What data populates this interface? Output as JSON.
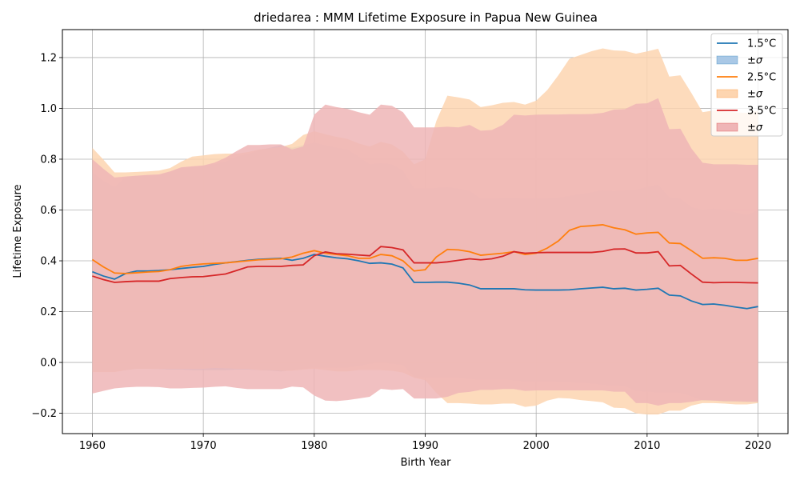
{
  "chart_data": {
    "type": "area",
    "title": "driedarea : MMM Lifetime Exposure in Papua New Guinea",
    "xlabel": "Birth Year",
    "ylabel": "Lifetime Exposure",
    "xlim": [
      1957.3,
      2022.7
    ],
    "ylim": [
      -0.28,
      1.31
    ],
    "xticks": [
      1960,
      1970,
      1980,
      1990,
      2000,
      2010,
      2020
    ],
    "yticks": [
      -0.2,
      0.0,
      0.2,
      0.4,
      0.6,
      0.8,
      1.0,
      1.2
    ],
    "ytick_labels": [
      "−0.2",
      "0.0",
      "0.2",
      "0.4",
      "0.6",
      "0.8",
      "1.0",
      "1.2"
    ],
    "grid": true,
    "legend_position": "top-right",
    "x": [
      1960,
      1961,
      1962,
      1963,
      1964,
      1965,
      1966,
      1967,
      1968,
      1969,
      1970,
      1971,
      1972,
      1973,
      1974,
      1975,
      1976,
      1977,
      1978,
      1979,
      1980,
      1981,
      1982,
      1983,
      1984,
      1985,
      1986,
      1987,
      1988,
      1989,
      1990,
      1991,
      1992,
      1993,
      1994,
      1995,
      1996,
      1997,
      1998,
      1999,
      2000,
      2001,
      2002,
      2003,
      2004,
      2005,
      2006,
      2007,
      2008,
      2009,
      2010,
      2011,
      2012,
      2013,
      2014,
      2015,
      2016,
      2017,
      2018,
      2019,
      2020
    ],
    "series": [
      {
        "name": "1.5°C",
        "band_label": "±σ",
        "color": "#1f77b4",
        "fill": "#a9c8e6",
        "mean": [
          0.357,
          0.34,
          0.328,
          0.35,
          0.36,
          0.36,
          0.362,
          0.365,
          0.37,
          0.374,
          0.378,
          0.386,
          0.392,
          0.397,
          0.402,
          0.406,
          0.408,
          0.41,
          0.402,
          0.41,
          0.425,
          0.418,
          0.412,
          0.408,
          0.4,
          0.39,
          0.392,
          0.387,
          0.372,
          0.315,
          0.315,
          0.316,
          0.316,
          0.312,
          0.305,
          0.29,
          0.29,
          0.29,
          0.29,
          0.286,
          0.285,
          0.285,
          0.285,
          0.286,
          0.29,
          0.293,
          0.296,
          0.29,
          0.292,
          0.285,
          0.288,
          0.292,
          0.265,
          0.262,
          0.242,
          0.228,
          0.23,
          0.225,
          0.218,
          0.212,
          0.22
        ],
        "upper": [
          0.748,
          0.715,
          0.69,
          0.73,
          0.735,
          0.735,
          0.738,
          0.75,
          0.765,
          0.77,
          0.775,
          0.78,
          0.79,
          0.81,
          0.82,
          0.835,
          0.845,
          0.855,
          0.845,
          0.855,
          0.865,
          0.855,
          0.845,
          0.838,
          0.81,
          0.78,
          0.785,
          0.78,
          0.755,
          0.685,
          0.685,
          0.687,
          0.69,
          0.684,
          0.676,
          0.645,
          0.645,
          0.647,
          0.648,
          0.645,
          0.646,
          0.646,
          0.649,
          0.655,
          0.662,
          0.67,
          0.678,
          0.674,
          0.678,
          0.68,
          0.69,
          0.7,
          0.65,
          0.645,
          0.612,
          0.6,
          0.606,
          0.6,
          0.59,
          0.58,
          0.6
        ],
        "lower": [
          -0.036,
          -0.037,
          -0.036,
          -0.03,
          -0.025,
          -0.025,
          -0.026,
          -0.028,
          -0.028,
          -0.03,
          -0.03,
          -0.03,
          -0.03,
          -0.028,
          -0.028,
          -0.03,
          -0.032,
          -0.035,
          -0.03,
          -0.025,
          -0.02,
          -0.02,
          -0.022,
          -0.02,
          -0.014,
          -0.005,
          0.0,
          -0.005,
          -0.01,
          -0.058,
          -0.058,
          -0.058,
          -0.058,
          -0.06,
          -0.065,
          -0.068,
          -0.068,
          -0.068,
          -0.07,
          -0.075,
          -0.075,
          -0.075,
          -0.076,
          -0.078,
          -0.08,
          -0.083,
          -0.088,
          -0.09,
          -0.094,
          -0.112,
          -0.115,
          -0.118,
          -0.118,
          -0.12,
          -0.133,
          -0.15,
          -0.15,
          -0.155,
          -0.155,
          -0.157,
          -0.157
        ]
      },
      {
        "name": "2.5°C",
        "band_label": "±σ",
        "color": "#ff7f0e",
        "fill": "#fdd5b0",
        "mean": [
          0.405,
          0.376,
          0.352,
          0.35,
          0.353,
          0.356,
          0.358,
          0.365,
          0.378,
          0.384,
          0.388,
          0.39,
          0.392,
          0.396,
          0.4,
          0.404,
          0.406,
          0.408,
          0.415,
          0.43,
          0.44,
          0.43,
          0.425,
          0.42,
          0.41,
          0.41,
          0.425,
          0.42,
          0.4,
          0.36,
          0.365,
          0.415,
          0.445,
          0.443,
          0.436,
          0.422,
          0.426,
          0.43,
          0.436,
          0.425,
          0.43,
          0.45,
          0.478,
          0.52,
          0.535,
          0.538,
          0.542,
          0.53,
          0.522,
          0.505,
          0.51,
          0.512,
          0.47,
          0.468,
          0.44,
          0.41,
          0.412,
          0.41,
          0.402,
          0.402,
          0.41
        ],
        "upper": [
          0.845,
          0.798,
          0.748,
          0.748,
          0.75,
          0.752,
          0.755,
          0.765,
          0.79,
          0.81,
          0.815,
          0.82,
          0.822,
          0.822,
          0.828,
          0.838,
          0.843,
          0.848,
          0.86,
          0.895,
          0.91,
          0.898,
          0.888,
          0.88,
          0.862,
          0.85,
          0.868,
          0.858,
          0.83,
          0.78,
          0.8,
          0.95,
          1.05,
          1.043,
          1.035,
          1.005,
          1.012,
          1.022,
          1.025,
          1.015,
          1.03,
          1.072,
          1.13,
          1.195,
          1.21,
          1.225,
          1.236,
          1.228,
          1.226,
          1.215,
          1.224,
          1.235,
          1.125,
          1.13,
          1.06,
          0.985,
          0.992,
          0.988,
          0.984,
          0.982,
          0.99
        ],
        "lower": [
          -0.038,
          -0.038,
          -0.038,
          -0.03,
          -0.025,
          -0.025,
          -0.025,
          -0.025,
          -0.025,
          -0.025,
          -0.025,
          -0.022,
          -0.023,
          -0.025,
          -0.025,
          -0.03,
          -0.03,
          -0.033,
          -0.032,
          -0.028,
          -0.025,
          -0.03,
          -0.035,
          -0.035,
          -0.03,
          -0.03,
          -0.03,
          -0.033,
          -0.04,
          -0.06,
          -0.07,
          -0.12,
          -0.16,
          -0.16,
          -0.162,
          -0.165,
          -0.165,
          -0.162,
          -0.162,
          -0.175,
          -0.17,
          -0.15,
          -0.14,
          -0.142,
          -0.148,
          -0.152,
          -0.157,
          -0.178,
          -0.18,
          -0.2,
          -0.205,
          -0.205,
          -0.19,
          -0.19,
          -0.17,
          -0.16,
          -0.16,
          -0.162,
          -0.165,
          -0.165,
          -0.16
        ]
      },
      {
        "name": "3.5°C",
        "band_label": "±σ",
        "color": "#d62728",
        "fill": "#efb5b6",
        "mean": [
          0.34,
          0.326,
          0.315,
          0.318,
          0.32,
          0.32,
          0.32,
          0.33,
          0.334,
          0.337,
          0.338,
          0.343,
          0.348,
          0.362,
          0.376,
          0.378,
          0.378,
          0.378,
          0.382,
          0.384,
          0.42,
          0.435,
          0.428,
          0.426,
          0.423,
          0.42,
          0.456,
          0.452,
          0.443,
          0.392,
          0.392,
          0.392,
          0.396,
          0.402,
          0.408,
          0.404,
          0.408,
          0.418,
          0.436,
          0.43,
          0.432,
          0.433,
          0.433,
          0.433,
          0.433,
          0.433,
          0.437,
          0.446,
          0.447,
          0.431,
          0.431,
          0.436,
          0.38,
          0.382,
          0.348,
          0.316,
          0.314,
          0.315,
          0.315,
          0.314,
          0.313
        ],
        "upper": [
          0.8,
          0.762,
          0.728,
          0.732,
          0.735,
          0.738,
          0.74,
          0.752,
          0.768,
          0.772,
          0.775,
          0.786,
          0.806,
          0.832,
          0.856,
          0.856,
          0.858,
          0.858,
          0.838,
          0.85,
          0.975,
          1.015,
          1.005,
          0.998,
          0.985,
          0.975,
          1.015,
          1.01,
          0.985,
          0.925,
          0.925,
          0.925,
          0.928,
          0.925,
          0.935,
          0.912,
          0.915,
          0.935,
          0.975,
          0.972,
          0.975,
          0.976,
          0.976,
          0.977,
          0.977,
          0.978,
          0.982,
          0.995,
          0.997,
          1.018,
          1.02,
          1.04,
          0.918,
          0.92,
          0.842,
          0.786,
          0.78,
          0.78,
          0.78,
          0.778,
          0.778
        ],
        "lower": [
          -0.122,
          -0.112,
          -0.102,
          -0.098,
          -0.096,
          -0.096,
          -0.097,
          -0.102,
          -0.102,
          -0.1,
          -0.099,
          -0.096,
          -0.094,
          -0.1,
          -0.105,
          -0.105,
          -0.105,
          -0.105,
          -0.095,
          -0.098,
          -0.13,
          -0.15,
          -0.152,
          -0.148,
          -0.142,
          -0.135,
          -0.104,
          -0.108,
          -0.105,
          -0.142,
          -0.142,
          -0.142,
          -0.135,
          -0.12,
          -0.116,
          -0.108,
          -0.108,
          -0.105,
          -0.105,
          -0.112,
          -0.11,
          -0.11,
          -0.11,
          -0.11,
          -0.11,
          -0.11,
          -0.11,
          -0.115,
          -0.115,
          -0.16,
          -0.16,
          -0.17,
          -0.16,
          -0.16,
          -0.155,
          -0.148,
          -0.15,
          -0.152,
          -0.153,
          -0.154,
          -0.155
        ]
      }
    ]
  }
}
